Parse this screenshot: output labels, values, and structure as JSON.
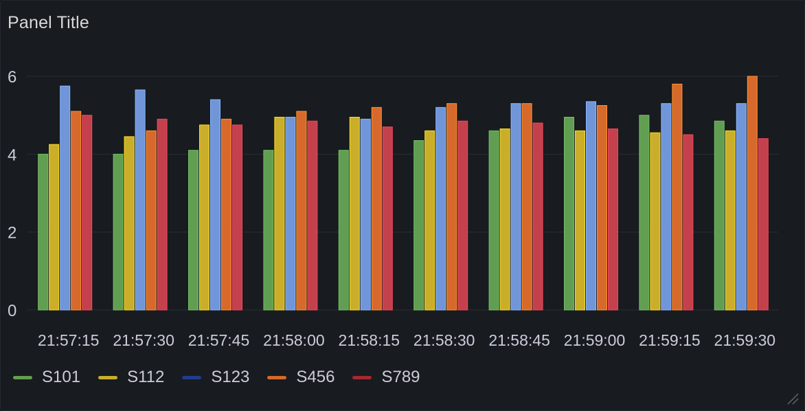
{
  "panel": {
    "title": "Panel Title"
  },
  "chart_data": {
    "type": "bar",
    "categories": [
      "21:57:15",
      "21:57:30",
      "21:57:45",
      "21:58:00",
      "21:58:15",
      "21:58:30",
      "21:58:45",
      "21:59:00",
      "21:59:15",
      "21:59:30"
    ],
    "series": [
      {
        "name": "S101",
        "color": "#73bf69",
        "fill": "#629e51",
        "values": [
          4.0,
          4.0,
          4.1,
          4.1,
          4.1,
          4.35,
          4.6,
          4.95,
          5.0,
          4.85
        ]
      },
      {
        "name": "S112",
        "color": "#fade2a",
        "fill": "#caae2a",
        "values": [
          4.25,
          4.45,
          4.75,
          4.95,
          4.95,
          4.6,
          4.65,
          4.6,
          4.55,
          4.6
        ]
      },
      {
        "name": "S123",
        "color": "#8ab8ff",
        "fill": "#7096d9",
        "legendColor": "#1f3e8c",
        "values": [
          5.75,
          5.65,
          5.4,
          4.95,
          4.9,
          5.2,
          5.3,
          5.35,
          5.3,
          5.3
        ]
      },
      {
        "name": "S456",
        "color": "#ff9830",
        "fill": "#d6692b",
        "values": [
          5.1,
          4.6,
          4.9,
          5.1,
          5.2,
          5.3,
          5.3,
          5.25,
          5.8,
          6.0
        ]
      },
      {
        "name": "S789",
        "color": "#f2495c",
        "fill": "#c4404c",
        "legendColor": "#a8282f",
        "values": [
          5.0,
          4.9,
          4.75,
          4.85,
          4.7,
          4.85,
          4.8,
          4.65,
          4.5,
          4.4
        ]
      }
    ],
    "xlabel": "",
    "ylabel": "",
    "ylim": [
      0,
      6
    ],
    "yticks": [
      0,
      2,
      4,
      6
    ],
    "grid": true,
    "legend_placement": "bottom-left"
  },
  "icons": {
    "resize": "resize-handle-icon"
  }
}
